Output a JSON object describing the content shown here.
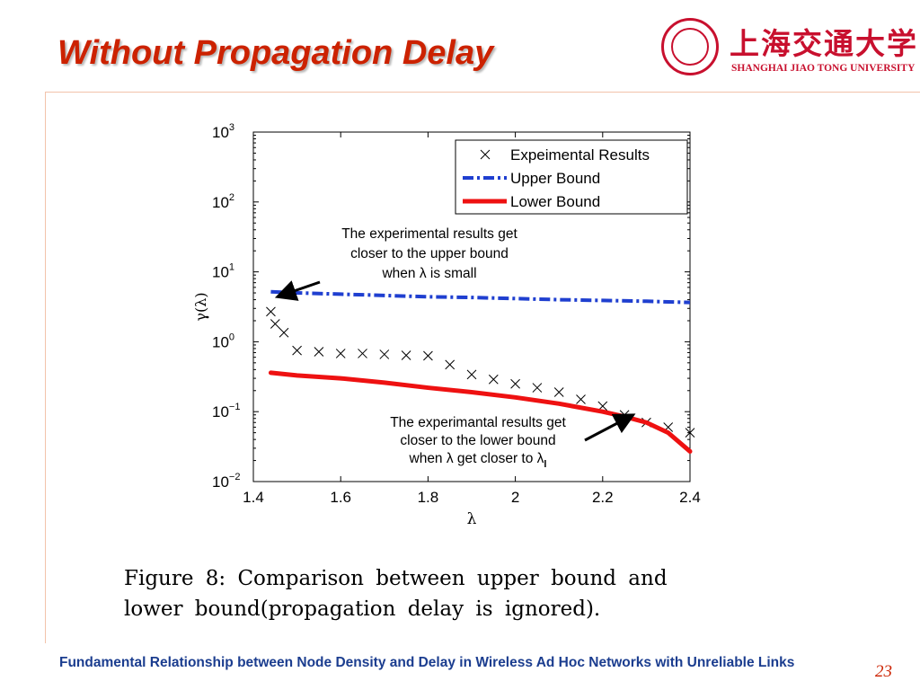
{
  "slide": {
    "title": "Without Propagation Delay",
    "caption_line1": "Figure 8:  Comparison between upper bound and",
    "caption_line2": "lower bound(propagation delay is ignored).",
    "footer": "Fundamental Relationship between Node Density and Delay in Wireless Ad Hoc Networks with Unreliable Links",
    "page_number": "23"
  },
  "logo": {
    "chinese_name": "上海交通大学",
    "english_name": "SHANGHAI JIAO TONG UNIVERSITY",
    "seal_year": "1896",
    "color": "#c8102e"
  },
  "chart_data": {
    "type": "line",
    "xlabel": "λ",
    "ylabel": "γ(λ)",
    "xlim": [
      1.4,
      2.4
    ],
    "ylim": [
      0.01,
      1000
    ],
    "yscale": "log",
    "xticks": [
      1.4,
      1.6,
      1.8,
      2.0,
      2.2,
      2.4
    ],
    "xtick_labels": [
      "1.4",
      "1.6",
      "1.8",
      "2",
      "2.2",
      "2.4"
    ],
    "yticks": [
      0.01,
      0.1,
      1,
      10,
      100,
      1000
    ],
    "ytick_labels": [
      {
        "base": "10",
        "exp": "−2"
      },
      {
        "base": "10",
        "exp": "−1"
      },
      {
        "base": "10",
        "exp": "0"
      },
      {
        "base": "10",
        "exp": "1"
      },
      {
        "base": "10",
        "exp": "2"
      },
      {
        "base": "10",
        "exp": "3"
      }
    ],
    "grid": false,
    "legend_position": "top-right",
    "series": [
      {
        "name": "Expeimental Results",
        "style": "markers-x",
        "color": "#000000",
        "x": [
          1.44,
          1.45,
          1.47,
          1.5,
          1.55,
          1.6,
          1.65,
          1.7,
          1.75,
          1.8,
          1.85,
          1.9,
          1.95,
          2.0,
          2.05,
          2.1,
          2.15,
          2.2,
          2.25,
          2.3,
          2.35,
          2.4
        ],
        "y": [
          2.7,
          1.8,
          1.35,
          0.75,
          0.72,
          0.68,
          0.68,
          0.66,
          0.64,
          0.63,
          0.47,
          0.34,
          0.29,
          0.25,
          0.22,
          0.19,
          0.15,
          0.12,
          0.09,
          0.07,
          0.06,
          0.05
        ]
      },
      {
        "name": "Upper Bound",
        "style": "dash-dot",
        "color": "#1f3fd0",
        "x": [
          1.44,
          1.5,
          1.6,
          1.7,
          1.8,
          1.9,
          2.0,
          2.1,
          2.2,
          2.3,
          2.4
        ],
        "y": [
          5.2,
          5.0,
          4.8,
          4.6,
          4.4,
          4.3,
          4.15,
          4.0,
          3.9,
          3.8,
          3.65
        ]
      },
      {
        "name": "Lower Bound",
        "style": "solid-thick",
        "color": "#ee1111",
        "x": [
          1.44,
          1.5,
          1.6,
          1.7,
          1.8,
          1.9,
          2.0,
          2.1,
          2.2,
          2.25,
          2.3,
          2.35,
          2.4
        ],
        "y": [
          0.36,
          0.33,
          0.3,
          0.26,
          0.22,
          0.19,
          0.16,
          0.13,
          0.1,
          0.085,
          0.07,
          0.05,
          0.027
        ]
      }
    ],
    "annotations": [
      {
        "lines": [
          "The experimental results get",
          "closer to the upper bound",
          "when λ is small"
        ],
        "arrow_to": {
          "x": 1.455,
          "y": 4.4
        }
      },
      {
        "lines": [
          "The experimantal results get",
          "closer to the lower bound",
          "when λ get closer to λl"
        ],
        "arrow_to": {
          "x": 2.27,
          "y": 0.09
        }
      }
    ]
  }
}
